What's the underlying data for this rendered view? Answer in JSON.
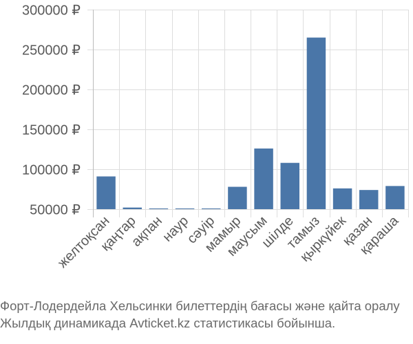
{
  "chart_data": {
    "type": "bar",
    "title": "",
    "xlabel": "",
    "ylabel": "",
    "currency_symbol": "₽",
    "ylim": [
      50000,
      300000
    ],
    "yticks": [
      50000,
      100000,
      150000,
      200000,
      250000,
      300000
    ],
    "grid": true,
    "bar_color": "#4a76a8",
    "categories": [
      "желтоқсан",
      "қаңтар",
      "ақпан",
      "наур",
      "сәуір",
      "мамыр",
      "маусым",
      "шілде",
      "тамыз",
      "қыркүйек",
      "қазан",
      "қараша"
    ],
    "values": [
      91000,
      52000,
      50500,
      50500,
      50500,
      78000,
      126000,
      108000,
      265000,
      76000,
      74000,
      79000
    ]
  },
  "caption": {
    "line1": "Форт-Лодердейла Хельсинки билеттердің бағасы және қайта оралу",
    "line2": "Жылдық динамикада Avticket.kz статистикасы бойынша."
  }
}
